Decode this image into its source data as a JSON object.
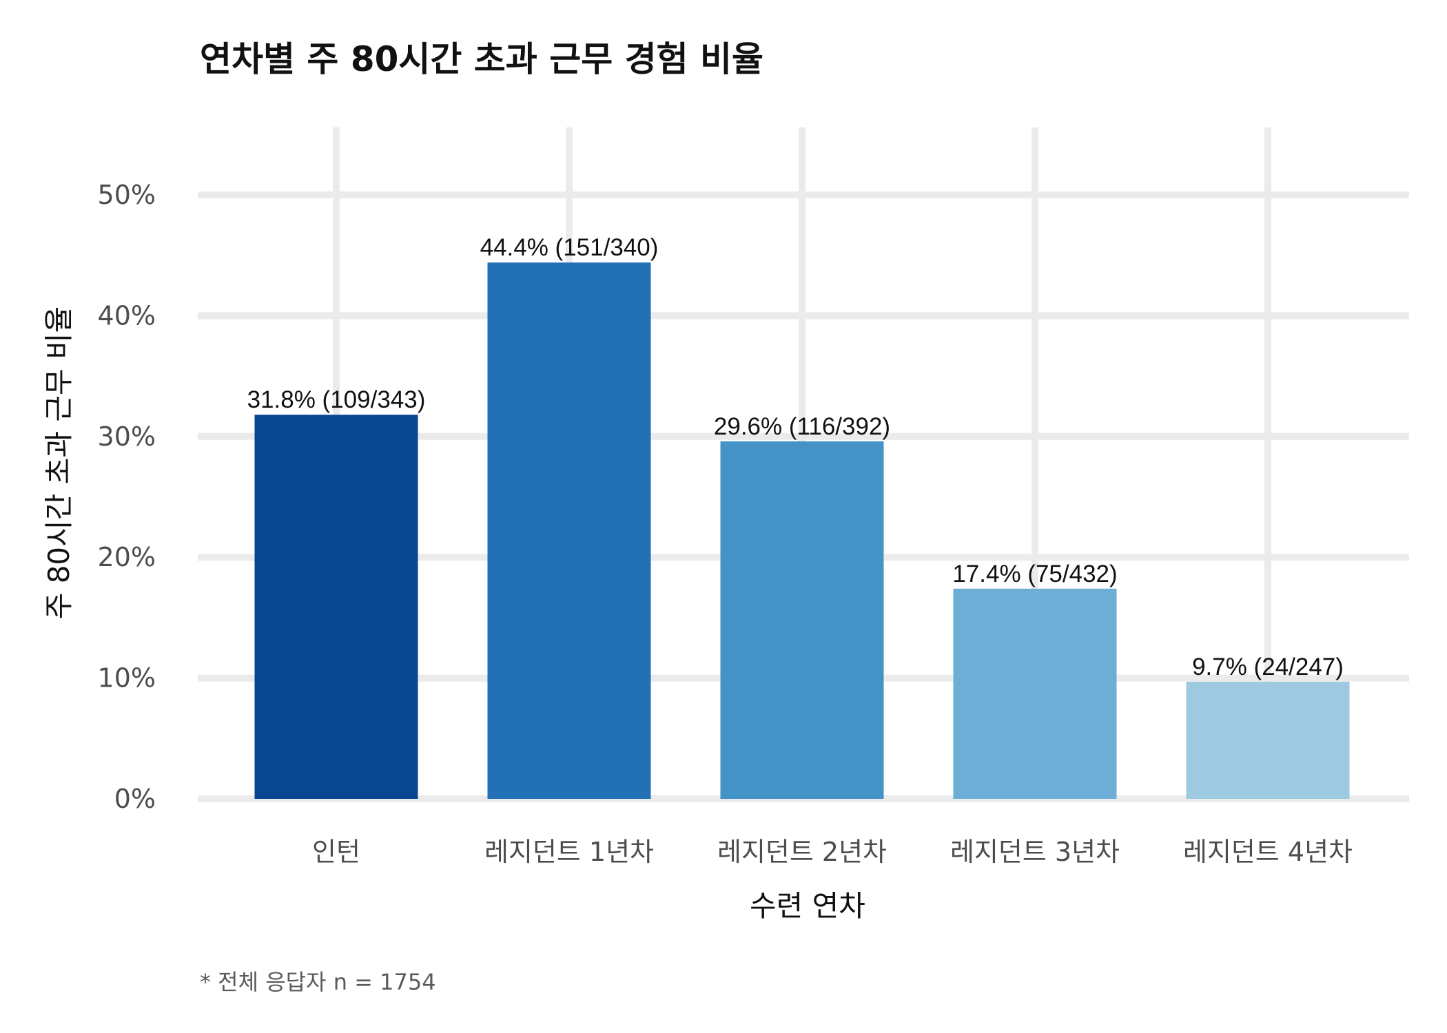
{
  "chart_data": {
    "type": "bar",
    "title": "연차별 주 80시간 초과 근무 경험 비율",
    "xlabel": "수련 연차",
    "ylabel": "주 80시간 초과 근무 비율",
    "categories": [
      "인턴",
      "레지던트 1년차",
      "레지던트 2년차",
      "레지던트 3년차",
      "레지던트 4년차"
    ],
    "values": [
      31.8,
      44.4,
      29.6,
      17.4,
      9.7
    ],
    "data_labels": [
      "31.8% (109/343)",
      "44.4% (151/340)",
      "29.6% (116/392)",
      "17.4% (75/432)",
      "9.7% (24/247)"
    ],
    "colors": [
      "#08468f",
      "#2271b5",
      "#4393c6",
      "#6caed6",
      "#9ecae1"
    ],
    "ylim": [
      0,
      50
    ],
    "yticks": [
      "0%",
      "10%",
      "20%",
      "30%",
      "40%",
      "50%"
    ],
    "ytick_values": [
      0,
      10,
      20,
      30,
      40,
      50
    ],
    "grid": true,
    "caption": "* 전체 응답자 n = 1754"
  }
}
